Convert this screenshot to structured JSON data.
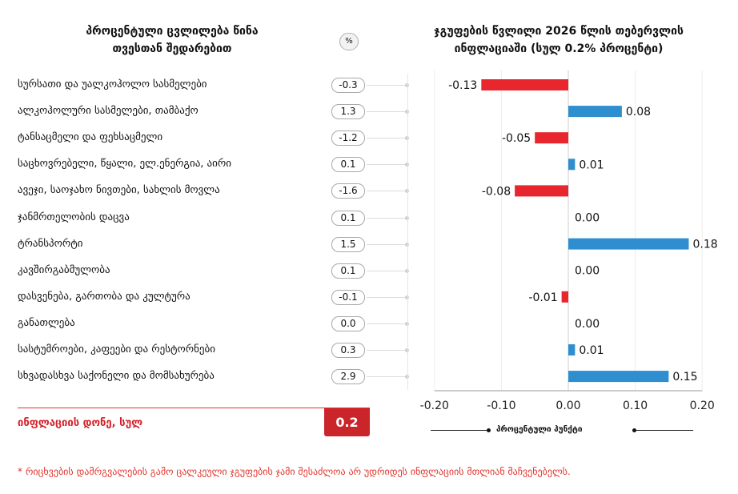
{
  "left_panel": {
    "title_line1": "პროცენტული ცვლილება წინა",
    "title_line2": "თვესთან შედარებით",
    "pct_badge": "%",
    "total_label": "ინფლაციის დონე, სულ",
    "total_value": "0.2"
  },
  "chart_data": {
    "type": "bar",
    "orientation": "horizontal",
    "title": "ჯგუფების წვლილი 2026 წლის თებერვლის ინფლაციაში (სულ 0.2% პროცენტი)",
    "title_line1": "ჯგუფების წვლილი 2026 წლის თებერვლის",
    "title_line2": "ინფლაციაში (სულ 0.2% პროცენტი)",
    "xlabel": "პროცენტული პუნქტი",
    "xlim": [
      -0.2,
      0.2
    ],
    "xticks": [
      "-0.20",
      "-0.10",
      "0.00",
      "0.10",
      "0.20"
    ],
    "xtick_values": [
      -0.2,
      -0.1,
      0.0,
      0.1,
      0.2
    ],
    "categories": [
      "სურსათი და უალკოჰოლო სასმელები",
      "ალკოჰოლური სასმელები, თამბაქო",
      "ტანსაცმელი და ფეხსაცმელი",
      "საცხოვრებელი, წყალი, ელ.ენერგია, აირი",
      "ავეჯი, საოჯახო ნივთები, სახლის მოვლა",
      "ჯანმრთელობის დაცვა",
      "ტრანსპორტი",
      "კავშირგაბმულობა",
      "დასვენება, გართობა და კულტურა",
      "განათლება",
      "სასტუმროები, კაფეები და რესტორნები",
      "სხვადასხვა საქონელი და მომსახურება"
    ],
    "monthly_change_pct": [
      "-0.3",
      "1.3",
      "-1.2",
      "0.1",
      "-1.6",
      "0.1",
      "1.5",
      "0.1",
      "-0.1",
      "0.0",
      "0.3",
      "2.9"
    ],
    "contributions": [
      -0.13,
      0.08,
      -0.05,
      0.01,
      -0.08,
      0.0,
      0.18,
      0.0,
      -0.01,
      0.0,
      0.01,
      0.15
    ],
    "contribution_labels": [
      "-0.13",
      "0.08",
      "-0.05",
      "0.01",
      "-0.08",
      "0.00",
      "0.18",
      "0.00",
      "-0.01",
      "0.00",
      "0.01",
      "0.15"
    ],
    "colors": {
      "positive": "#2f8ecf",
      "negative": "#e8262d"
    }
  },
  "footnote": "* რიცხვების დამრგვალების გამო ცალკეული ჯგუფების ჯამი შესაძლოა არ უდრიდეს ინფლაციის მთლიან მაჩვენებელს."
}
